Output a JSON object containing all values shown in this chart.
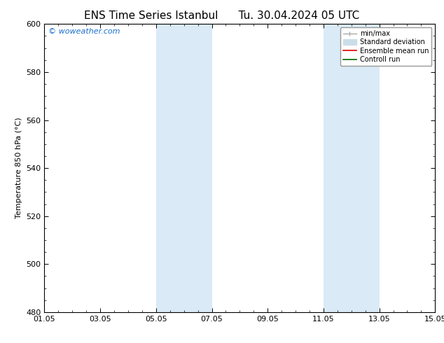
{
  "title_left": "ENS Time Series Istanbul",
  "title_right": "Tu. 30.04.2024 05 UTC",
  "ylabel": "Temperature 850 hPa (°C)",
  "ylim": [
    480,
    600
  ],
  "yticks": [
    480,
    500,
    520,
    540,
    560,
    580,
    600
  ],
  "xlim": [
    0,
    14
  ],
  "xtick_positions": [
    0,
    2,
    4,
    6,
    8,
    10,
    12,
    14
  ],
  "xtick_labels": [
    "01.05",
    "03.05",
    "05.05",
    "07.05",
    "09.05",
    "11.05",
    "13.05",
    "15.05"
  ],
  "shaded_bands": [
    {
      "x_start": 4,
      "x_end": 6
    },
    {
      "x_start": 10,
      "x_end": 12
    }
  ],
  "shaded_color": "#daeaf7",
  "watermark_text": "© woweather.com",
  "watermark_color": "#1a6fcc",
  "legend_items": [
    {
      "label": "min/max",
      "color": "#aaaaaa"
    },
    {
      "label": "Standard deviation",
      "color": "#ccdde8"
    },
    {
      "label": "Ensemble mean run",
      "color": "#dd0000"
    },
    {
      "label": "Controll run",
      "color": "#006600"
    }
  ],
  "bg_color": "#ffffff",
  "spine_color": "#000000",
  "title_fontsize": 11,
  "tick_label_fontsize": 8,
  "ylabel_fontsize": 8,
  "watermark_fontsize": 8,
  "legend_fontsize": 7
}
